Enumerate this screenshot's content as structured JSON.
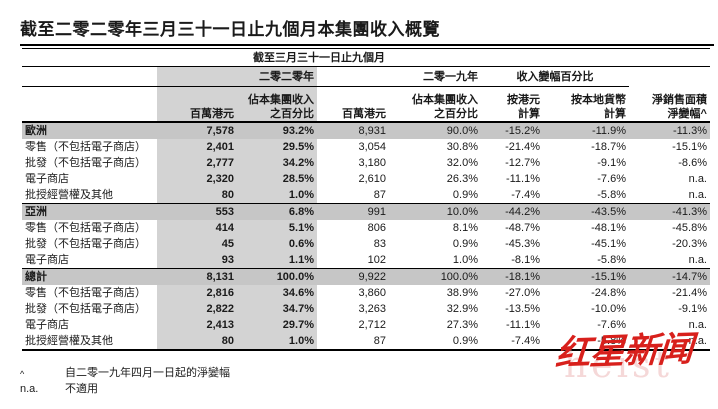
{
  "page": {
    "title": "截至二零二零年三月三十一日止九個月本集團收入概覽"
  },
  "table": {
    "caption": "截至三月三十一日止九個月",
    "col_groups": [
      "二零二零年",
      "二零一九年",
      "收入變幅百分比"
    ],
    "col_headers": [
      "百萬港元",
      "佔本集團收入\n之百分比",
      "百萬港元",
      "佔本集團收入\n之百分比",
      "按港元\n計算",
      "按本地貨幣\n計算",
      "淨銷售面積\n淨變幅^"
    ],
    "rows": [
      {
        "label": "歐洲",
        "section": true,
        "values": [
          "7,578",
          "93.2%",
          "8,931",
          "90.0%",
          "-15.2%",
          "-11.9%",
          "-11.3%"
        ]
      },
      {
        "label": "零售（不包括電子商店）",
        "values": [
          "2,401",
          "29.5%",
          "3,054",
          "30.8%",
          "-21.4%",
          "-18.7%",
          "-15.1%"
        ]
      },
      {
        "label": "批發（不包括電子商店）",
        "values": [
          "2,777",
          "34.2%",
          "3,180",
          "32.0%",
          "-12.7%",
          "-9.1%",
          "-8.6%"
        ]
      },
      {
        "label": "電子商店",
        "values": [
          "2,320",
          "28.5%",
          "2,610",
          "26.3%",
          "-11.1%",
          "-7.6%",
          "n.a."
        ]
      },
      {
        "label": "批授經營權及其他",
        "values": [
          "80",
          "1.0%",
          "87",
          "0.9%",
          "-7.4%",
          "-5.8%",
          "n.a."
        ]
      },
      {
        "label": "亞洲",
        "section": true,
        "divider_above": true,
        "values": [
          "553",
          "6.8%",
          "991",
          "10.0%",
          "-44.2%",
          "-43.5%",
          "-41.3%"
        ]
      },
      {
        "label": "零售（不包括電子商店）",
        "values": [
          "414",
          "5.1%",
          "806",
          "8.1%",
          "-48.7%",
          "-48.1%",
          "-45.8%"
        ]
      },
      {
        "label": "批發（不包括電子商店）",
        "values": [
          "45",
          "0.6%",
          "83",
          "0.9%",
          "-45.3%",
          "-45.1%",
          "-20.3%"
        ]
      },
      {
        "label": "電子商店",
        "values": [
          "93",
          "1.1%",
          "102",
          "1.0%",
          "-8.1%",
          "-5.8%",
          "n.a."
        ]
      },
      {
        "label": "總計",
        "section": true,
        "divider_above": true,
        "values": [
          "8,131",
          "100.0%",
          "9,922",
          "100.0%",
          "-18.1%",
          "-15.1%",
          "-14.7%"
        ]
      },
      {
        "label": "零售（不包括電子商店）",
        "values": [
          "2,816",
          "34.6%",
          "3,860",
          "38.9%",
          "-27.0%",
          "-24.8%",
          "-21.4%"
        ]
      },
      {
        "label": "批發（不包括電子商店）",
        "values": [
          "2,822",
          "34.7%",
          "3,263",
          "32.9%",
          "-13.5%",
          "-10.0%",
          "-9.1%"
        ]
      },
      {
        "label": "電子商店",
        "values": [
          "2,413",
          "29.7%",
          "2,712",
          "27.3%",
          "-11.1%",
          "-7.6%",
          "n.a."
        ]
      },
      {
        "label": "批授經營權及其他",
        "values": [
          "80",
          "1.0%",
          "87",
          "0.9%",
          "-7.4%",
          "-5.8%",
          "n.a."
        ]
      }
    ]
  },
  "footnotes": [
    {
      "marker": "^",
      "text": "自二零一九年四月一日起的淨變幅"
    },
    {
      "marker": "n.a.",
      "text": "不適用"
    }
  ],
  "watermark": {
    "text": "红星新闻",
    "latin": "heist",
    "color": "#d8201c"
  },
  "colors": {
    "band": "#d3d3d3",
    "section_row": "#c6c6c6",
    "rule": "#000000"
  }
}
